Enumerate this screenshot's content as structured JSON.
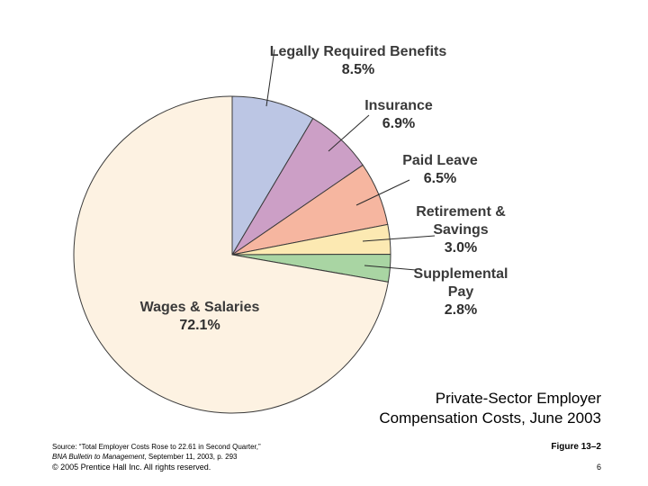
{
  "chart_data": {
    "type": "pie",
    "title": "Private-Sector Employer Compensation Costs, June 2003",
    "title_lines": [
      "Private-Sector Employer",
      "Compensation Costs, June 2003"
    ],
    "slices": [
      {
        "label_lines": [
          "Legally Required Benefits"
        ],
        "value": 8.5,
        "value_label": "8.5%",
        "color": "#bcc6e4"
      },
      {
        "label_lines": [
          "Insurance"
        ],
        "value": 6.9,
        "value_label": "6.9%",
        "color": "#cc9fc6"
      },
      {
        "label_lines": [
          "Paid Leave"
        ],
        "value": 6.5,
        "value_label": "6.5%",
        "color": "#f6b6a0"
      },
      {
        "label_lines": [
          "Retirement &",
          "Savings"
        ],
        "value": 3.0,
        "value_label": "3.0%",
        "color": "#fce9b2"
      },
      {
        "label_lines": [
          "Supplemental",
          "Pay"
        ],
        "value": 2.8,
        "value_label": "2.8%",
        "color": "#a9d5a3"
      },
      {
        "label_lines": [
          "Wages & Salaries"
        ],
        "value": 72.1,
        "value_label": "72.1%",
        "color": "#fdf2e2"
      }
    ]
  },
  "footer": {
    "source_prefix": "Source: “Total Employer Costs Rose to 22.61 in Second Quarter,”",
    "source_pub": "BNA Bulletin to Management",
    "source_suffix": ", September 11, 2003, p. 293",
    "copyright": "© 2005 Prentice Hall Inc. All rights reserved.",
    "figure": "Figure 13–2",
    "page": "6"
  }
}
